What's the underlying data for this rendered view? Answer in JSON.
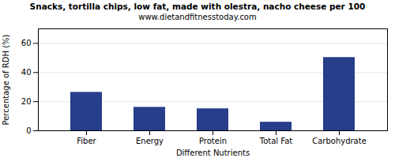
{
  "chart_data": {
    "type": "bar",
    "title": "Snacks, tortilla chips, low fat, made with olestra, nacho cheese per 100",
    "subtitle": "www.dietandfitnesstoday.com",
    "categories": [
      "Fiber",
      "Energy",
      "Protein",
      "Total Fat",
      "Carbohydrate"
    ],
    "values": [
      26.4,
      16.1,
      15.1,
      5.9,
      50.3
    ],
    "color": "#273E8B",
    "xlabel": "Different Nutrients",
    "ylabel": "Percentage of RDH (%)",
    "ylim": [
      0,
      70
    ],
    "yticks": [
      0,
      20,
      40,
      60
    ],
    "grid": true
  }
}
